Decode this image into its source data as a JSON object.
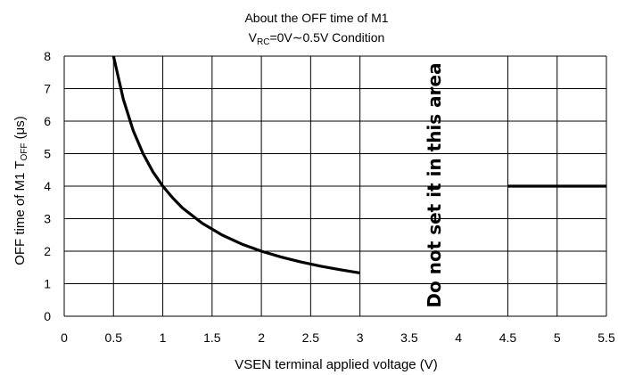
{
  "chart_data": {
    "type": "line",
    "title_line1": "About the OFF time of M1",
    "title_line2_main": "V",
    "title_line2_sub": "RC",
    "title_line2_rest": "=0V∼0.5V Condition",
    "xlabel": "VSEN terminal applied voltage (V)",
    "ylabel_main": "OFF time of M1 T",
    "ylabel_sub": "OFF",
    "ylabel_rest": " (μs)",
    "xlim": [
      0,
      5.5
    ],
    "ylim": [
      0,
      8
    ],
    "x_ticks": [
      "0",
      "0.5",
      "1",
      "1.5",
      "2",
      "2.5",
      "3",
      "3.5",
      "4",
      "4.5",
      "5",
      "5.5"
    ],
    "y_ticks": [
      "0",
      "1",
      "2",
      "3",
      "4",
      "5",
      "6",
      "7",
      "8"
    ],
    "grid": true,
    "region_annotation": "Do not set it in this area",
    "series": [
      {
        "x": [
          0.5,
          0.6,
          0.7,
          0.8,
          0.9,
          1.0,
          1.1,
          1.2,
          1.4,
          1.6,
          1.8,
          2.0,
          2.2,
          2.4,
          2.6,
          2.8,
          3.0
        ],
        "y": [
          8.0,
          6.67,
          5.71,
          5.0,
          4.44,
          4.0,
          3.64,
          3.33,
          2.86,
          2.5,
          2.22,
          2.0,
          1.82,
          1.67,
          1.54,
          1.43,
          1.33
        ]
      },
      {
        "x": [
          4.5,
          5.5
        ],
        "y": [
          4.0,
          4.0
        ]
      }
    ]
  }
}
